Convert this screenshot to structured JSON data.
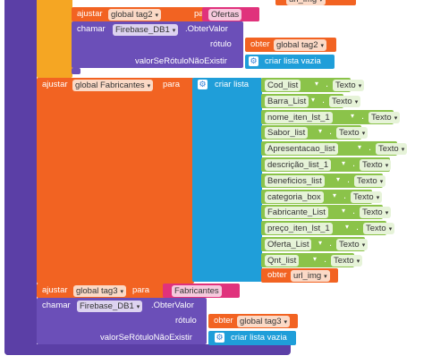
{
  "colors": {
    "purple_proc": "#5b3fa6",
    "purple_call": "#6b4fb8",
    "orange_control": "#f5a623",
    "orange_set": "#f26322",
    "pink_text": "#e0327c",
    "blue_list": "#1f9ed9",
    "green_item": "#8bc34a"
  },
  "top_partial": {
    "obter_label": "obter",
    "obter_var": "url_img"
  },
  "block1": {
    "set_label": "ajustar",
    "set_var": "global tag2",
    "para_label": "para",
    "value": "Ofertas",
    "call_label": "chamar",
    "component": "Firebase_DB1",
    "method": ".ObterValor",
    "rotulo_label": "rótulo",
    "get_label": "obter",
    "get_var": "global tag2",
    "default_label": "valorSeRótuloNãoExistir",
    "empty_list_label": "criar lista vazia"
  },
  "block2": {
    "set_label": "ajustar",
    "set_var": "global Fabricantes",
    "para_label": "para",
    "list_label": "criar lista",
    "items": [
      {
        "var": "Cod_list",
        "text": "Texto"
      },
      {
        "var": "Barra_List",
        "text": "Texto"
      },
      {
        "var": "nome_iten_lst_1",
        "text": "Texto"
      },
      {
        "var": "Sabor_list",
        "text": "Texto"
      },
      {
        "var": "Apresentacao_list",
        "text": "Texto"
      },
      {
        "var": "descrição_list_1",
        "text": "Texto"
      },
      {
        "var": "Beneficios_list",
        "text": "Texto"
      },
      {
        "var": "categoria_box",
        "text": "Texto"
      },
      {
        "var": "Fabricante_List",
        "text": "Texto"
      },
      {
        "var": "preço_iten_lst_1",
        "text": "Texto"
      },
      {
        "var": "Oferta_List",
        "text": "Texto"
      },
      {
        "var": "Qnt_list",
        "text": "Texto"
      }
    ],
    "last_get_label": "obter",
    "last_get_var": "url_img"
  },
  "block3": {
    "set_label": "ajustar",
    "set_var": "global tag3",
    "para_label": "para",
    "value": "Fabricantes",
    "call_label": "chamar",
    "component": "Firebase_DB1",
    "method": ".ObterValor",
    "rotulo_label": "rótulo",
    "get_label": "obter",
    "get_var": "global tag3",
    "default_label": "valorSeRótuloNãoExistir",
    "empty_list_label": "criar lista vazia"
  }
}
